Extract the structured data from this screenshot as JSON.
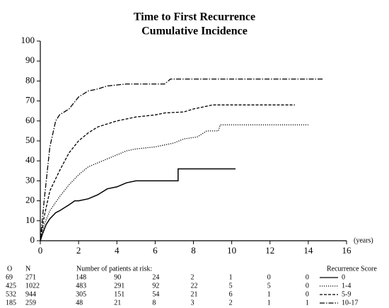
{
  "chart_data": {
    "type": "line",
    "title": "Time to First Recurrence",
    "subtitle": "Cumulative Incidence",
    "x_label": "(years)",
    "xlim": [
      0,
      16
    ],
    "xticks": [
      0,
      2,
      4,
      6,
      8,
      10,
      12,
      14,
      16
    ],
    "ylim": [
      0,
      100
    ],
    "yticks": [
      0,
      10,
      20,
      30,
      40,
      50,
      60,
      70,
      80,
      90,
      100
    ],
    "grid": false,
    "legend_title": "Recurrence Score",
    "series": [
      {
        "name": "0",
        "color": "#000000",
        "style": "solid",
        "x": [
          0,
          0.1,
          0.3,
          0.5,
          0.8,
          1,
          1.5,
          1.8,
          2,
          2.5,
          3,
          3.5,
          4,
          4.5,
          5,
          6,
          7.2,
          7.2,
          10.2
        ],
        "values": [
          0,
          3,
          8,
          11,
          14,
          15,
          18,
          20,
          20,
          21,
          23,
          26,
          27,
          29,
          30,
          30,
          30,
          36,
          36
        ]
      },
      {
        "name": "1-4",
        "color": "#000000",
        "style": "dotted",
        "x": [
          0,
          0.2,
          0.5,
          1,
          1.5,
          2,
          2.5,
          3,
          3.5,
          4,
          4.5,
          5,
          6,
          7,
          7.5,
          8.2,
          8.7,
          9.3,
          9.4,
          14
        ],
        "values": [
          0,
          8,
          15,
          22,
          28,
          33,
          37,
          39,
          41,
          43,
          45,
          46,
          47,
          49,
          51,
          52,
          55,
          55,
          58,
          58
        ]
      },
      {
        "name": "5-9",
        "color": "#000000",
        "style": "dashed",
        "x": [
          0,
          0.2,
          0.5,
          1,
          1.5,
          2,
          2.5,
          3,
          3.5,
          4,
          4.5,
          5,
          6,
          6.5,
          7.5,
          8,
          8.5,
          9,
          13.3
        ],
        "values": [
          0,
          12,
          25,
          35,
          44,
          50,
          54,
          57,
          58.5,
          60,
          61,
          62,
          63,
          64,
          64.5,
          66,
          67,
          68,
          68
        ]
      },
      {
        "name": "10-17",
        "color": "#000000",
        "style": "dashdot",
        "x": [
          0,
          0.2,
          0.5,
          0.8,
          1,
          1.5,
          2,
          2.5,
          3,
          3.5,
          4,
          4.5,
          6.5,
          6.8,
          14.8
        ],
        "values": [
          0,
          20,
          47,
          60,
          63,
          66,
          72,
          75,
          76,
          77.5,
          78,
          78.5,
          78.5,
          81,
          81
        ]
      }
    ],
    "risk_table": {
      "headers": [
        "O",
        "N",
        "Number of patients at risk:"
      ],
      "at_risk_x": [
        2,
        4,
        6,
        8,
        10,
        12,
        14
      ],
      "rows": [
        {
          "o": "69",
          "n": "271",
          "at_risk": [
            "148",
            "90",
            "24",
            "2",
            "1",
            "0",
            "0"
          ]
        },
        {
          "o": "425",
          "n": "1022",
          "at_risk": [
            "483",
            "291",
            "92",
            "22",
            "5",
            "5",
            "0"
          ]
        },
        {
          "o": "532",
          "n": "944",
          "at_risk": [
            "305",
            "151",
            "54",
            "21",
            "6",
            "1",
            "0"
          ]
        },
        {
          "o": "185",
          "n": "259",
          "at_risk": [
            "48",
            "21",
            "8",
            "3",
            "2",
            "1",
            "1"
          ]
        }
      ]
    }
  }
}
